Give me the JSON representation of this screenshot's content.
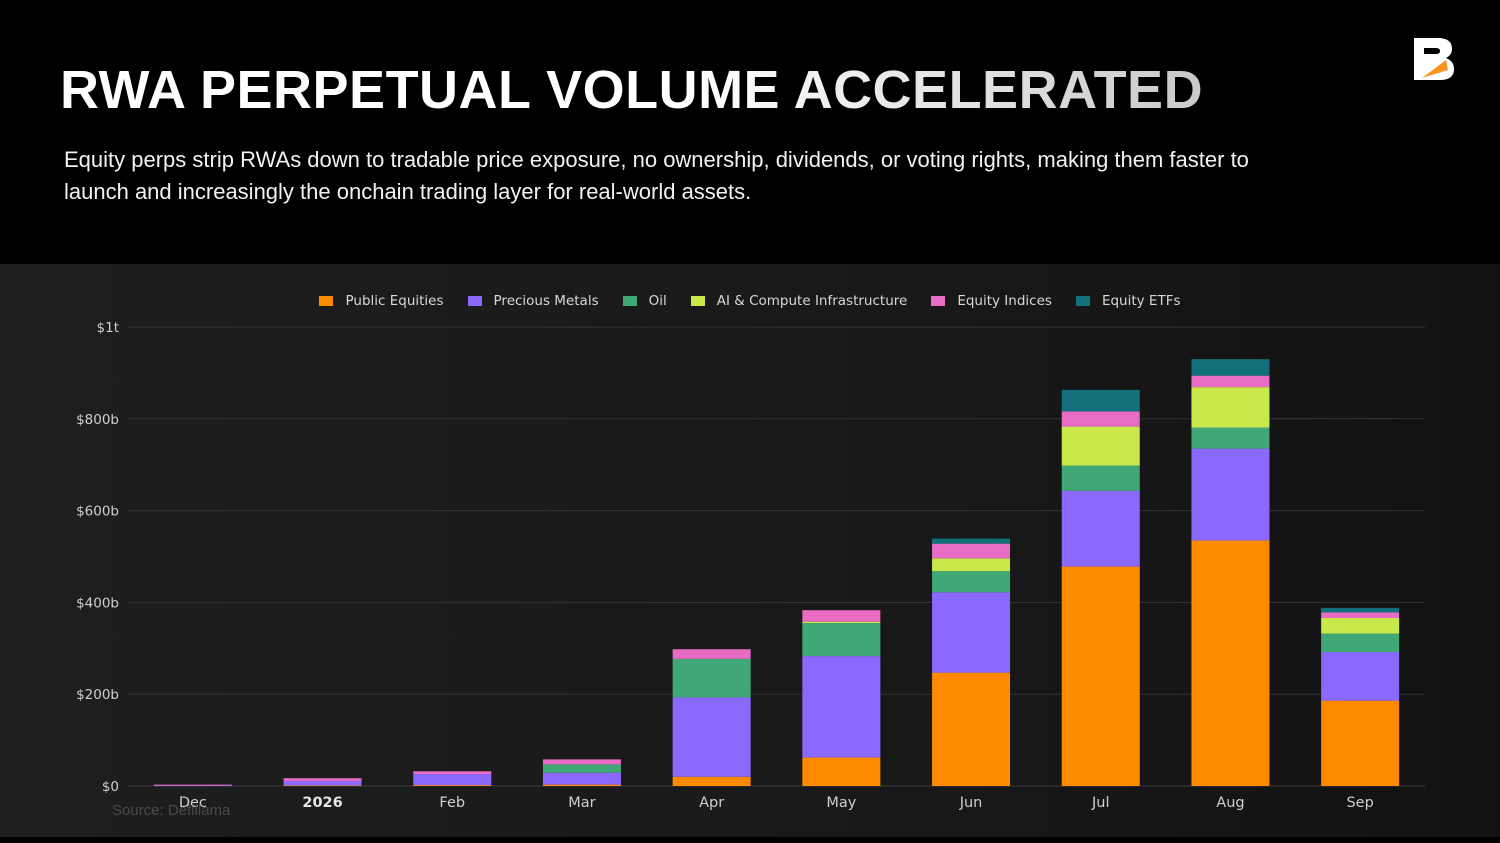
{
  "header": {
    "title": "RWA PERPETUAL VOLUME ACCELERATED",
    "subtitle": "Equity perps strip RWAs down to tradable price exposure, no ownership, dividends, or voting rights, making them faster to launch and increasingly the onchain trading layer for real-world assets."
  },
  "logo": {
    "icon": "b-logo-icon",
    "color": "#ffffff",
    "accent": "#f7941d"
  },
  "source": "Source: Defillama",
  "chart_data": {
    "type": "bar",
    "stacked": true,
    "categories": [
      "Dec",
      "2026",
      "Feb",
      "Mar",
      "Apr",
      "May",
      "Jun",
      "Jul",
      "Aug",
      "Sep"
    ],
    "bold_categories": [
      "2026"
    ],
    "y_unit": "billions USD",
    "ylim": [
      0,
      1000
    ],
    "y_ticks": [
      {
        "value": 0,
        "label": "$0"
      },
      {
        "value": 200,
        "label": "$200b"
      },
      {
        "value": 400,
        "label": "$400b"
      },
      {
        "value": 600,
        "label": "$600b"
      },
      {
        "value": 800,
        "label": "$800b"
      },
      {
        "value": 1000,
        "label": "$1t"
      }
    ],
    "grid": true,
    "legend_position": "top-center",
    "series": [
      {
        "name": "Public Equities",
        "color": "#ff8a00",
        "values": [
          0,
          1,
          2,
          3,
          20,
          62,
          247,
          478,
          535,
          186
        ]
      },
      {
        "name": "Precious Metals",
        "color": "#8b69ff",
        "values": [
          1,
          10,
          24,
          26,
          173,
          221,
          175,
          165,
          200,
          106
        ]
      },
      {
        "name": "Oil",
        "color": "#3fa876",
        "values": [
          0,
          0,
          0,
          18,
          84,
          72,
          46,
          55,
          46,
          40
        ]
      },
      {
        "name": "AI & Compute Infrastructure",
        "color": "#c9e84a",
        "values": [
          0,
          0,
          0,
          0,
          0,
          3,
          28,
          85,
          88,
          34
        ]
      },
      {
        "name": "Equity Indices",
        "color": "#e86cc4",
        "values": [
          2,
          6,
          6,
          11,
          21,
          25,
          32,
          33,
          25,
          12
        ]
      },
      {
        "name": "Equity ETFs",
        "color": "#11707a",
        "values": [
          0,
          0,
          0,
          0,
          0,
          0,
          11,
          47,
          36,
          10
        ]
      }
    ]
  }
}
